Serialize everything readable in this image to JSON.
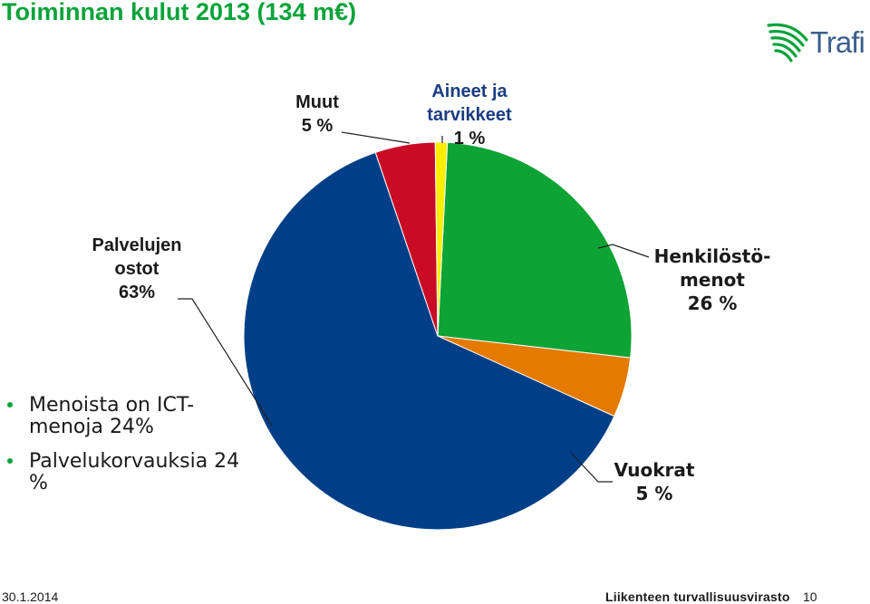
{
  "title": "Toiminnan kulut 2013 (134 m€)",
  "logo": {
    "text": "Trafi",
    "icon": "trafi-swoosh-icon"
  },
  "chart_data": {
    "type": "pie",
    "title": "Toiminnan kulut 2013 (134 m€)",
    "slices": [
      {
        "label": "Henkilöstömenot",
        "value": 26,
        "color": "#0ea335"
      },
      {
        "label": "Vuokrat",
        "value": 5,
        "color": "#e57a00"
      },
      {
        "label": "Palvelujen ostot",
        "value": 63,
        "color": "#003f87"
      },
      {
        "label": "Muut",
        "value": 5,
        "color": "#c90b25"
      },
      {
        "label": "Aineet ja tarvikkeet",
        "value": 1,
        "color": "#ffee00"
      }
    ]
  },
  "labels": {
    "muut": [
      "Muut",
      "5 %"
    ],
    "aineet": [
      "Aineet ja",
      "tarvikkeet",
      "1 %"
    ],
    "palvelujen": [
      "Palvelujen",
      "ostot",
      "63%"
    ],
    "henkilosto": [
      "Henkilöstö-",
      "menot",
      "26 %"
    ],
    "vuokrat": [
      "Vuokrat",
      "5 %"
    ]
  },
  "bullets": [
    "Menoista on ICT-menoja 24%",
    "Palvelukorvauksia 24 %"
  ],
  "footer": {
    "date": "30.1.2014",
    "org": "Liikenteen turvallisuusvirasto",
    "page": "10"
  }
}
